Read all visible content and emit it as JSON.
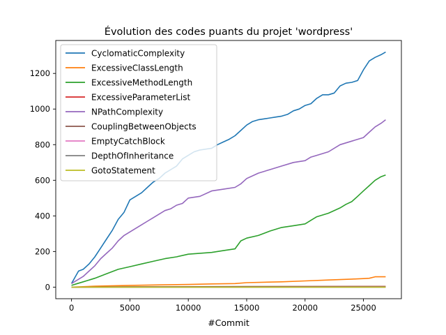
{
  "chart_data": {
    "type": "line",
    "title": "Évolution des codes puants du projet 'wordpress'",
    "xlabel": "#Commit",
    "ylabel": "",
    "xlim": [
      -1350,
      28250
    ],
    "ylim": [
      -65,
      1385
    ],
    "xticks": [
      0,
      5000,
      10000,
      15000,
      20000,
      25000
    ],
    "yticks": [
      0,
      200,
      400,
      600,
      800,
      1000,
      1200
    ],
    "grid": false,
    "legend": "top-left",
    "series": [
      {
        "name": "CyclomaticComplexity",
        "color": "#1f77b4",
        "x": [
          0,
          300,
          600,
          1000,
          1500,
          2000,
          2500,
          3000,
          3500,
          4000,
          4500,
          5000,
          5500,
          6000,
          6500,
          7000,
          7500,
          8000,
          8500,
          9000,
          9500,
          10000,
          10500,
          11000,
          11500,
          12000,
          12500,
          13000,
          13500,
          14000,
          14500,
          15000,
          15500,
          16000,
          16500,
          17000,
          17500,
          18000,
          18500,
          19000,
          19500,
          20000,
          20500,
          21000,
          21500,
          22000,
          22500,
          23000,
          23500,
          24000,
          24500,
          25000,
          25500,
          26000,
          26500,
          26900
        ],
        "values": [
          20,
          55,
          90,
          100,
          130,
          170,
          220,
          270,
          320,
          380,
          420,
          490,
          510,
          530,
          560,
          590,
          610,
          640,
          660,
          680,
          720,
          740,
          760,
          770,
          775,
          780,
          800,
          815,
          830,
          850,
          880,
          910,
          930,
          940,
          945,
          950,
          955,
          960,
          970,
          990,
          1000,
          1020,
          1030,
          1060,
          1080,
          1080,
          1090,
          1130,
          1145,
          1150,
          1160,
          1220,
          1270,
          1290,
          1305,
          1320
        ]
      },
      {
        "name": "ExcessiveClassLength",
        "color": "#ff7f0e",
        "x": [
          0,
          2000,
          5000,
          8000,
          10000,
          12000,
          14000,
          15000,
          18000,
          20000,
          22000,
          24000,
          25000,
          25500,
          26000,
          26900
        ],
        "values": [
          0,
          5,
          10,
          13,
          15,
          18,
          20,
          25,
          30,
          35,
          40,
          45,
          48,
          50,
          58,
          58
        ]
      },
      {
        "name": "ExcessiveMethodLength",
        "color": "#2ca02c",
        "x": [
          0,
          500,
          1000,
          2000,
          3000,
          4000,
          5000,
          6000,
          7000,
          8000,
          9000,
          10000,
          11000,
          12000,
          13000,
          14000,
          14500,
          15000,
          16000,
          17000,
          18000,
          19000,
          20000,
          20500,
          21000,
          22000,
          23000,
          23500,
          24000,
          24500,
          25000,
          25500,
          26000,
          26500,
          26900
        ],
        "values": [
          10,
          20,
          30,
          50,
          75,
          100,
          115,
          130,
          145,
          160,
          170,
          185,
          190,
          195,
          205,
          215,
          260,
          275,
          290,
          315,
          335,
          345,
          355,
          375,
          395,
          415,
          445,
          465,
          480,
          510,
          540,
          570,
          600,
          620,
          630
        ]
      },
      {
        "name": "ExcessiveParameterList",
        "color": "#d62728",
        "x": [
          0,
          10000,
          20000,
          26900
        ],
        "values": [
          0,
          2,
          3,
          4
        ]
      },
      {
        "name": "NPathComplexity",
        "color": "#9467bd",
        "x": [
          0,
          500,
          1000,
          1500,
          2000,
          2500,
          3000,
          3500,
          4000,
          4500,
          5000,
          5500,
          6000,
          6500,
          7000,
          7500,
          8000,
          8500,
          9000,
          9500,
          10000,
          11000,
          12000,
          13000,
          14000,
          14500,
          15000,
          16000,
          17000,
          18000,
          19000,
          20000,
          20500,
          21000,
          22000,
          23000,
          24000,
          25000,
          25500,
          26000,
          26500,
          26900
        ],
        "values": [
          20,
          40,
          60,
          90,
          120,
          160,
          190,
          220,
          260,
          290,
          310,
          330,
          350,
          370,
          390,
          410,
          430,
          440,
          460,
          470,
          500,
          510,
          540,
          550,
          560,
          580,
          610,
          640,
          660,
          680,
          700,
          710,
          730,
          740,
          760,
          800,
          820,
          840,
          870,
          900,
          920,
          940
        ]
      },
      {
        "name": "CouplingBetweenObjects",
        "color": "#8c564b",
        "x": [
          0,
          5000,
          15000,
          26900
        ],
        "values": [
          0,
          2,
          3,
          3
        ]
      },
      {
        "name": "EmptyCatchBlock",
        "color": "#e377c2",
        "x": [
          0,
          26900
        ],
        "values": [
          0,
          1
        ]
      },
      {
        "name": "DepthOfInheritance",
        "color": "#7f7f7f",
        "x": [
          0,
          26900
        ],
        "values": [
          0,
          0
        ]
      },
      {
        "name": "GotoStatement",
        "color": "#bcbd22",
        "x": [
          0,
          26900
        ],
        "values": [
          0,
          0
        ]
      }
    ]
  }
}
